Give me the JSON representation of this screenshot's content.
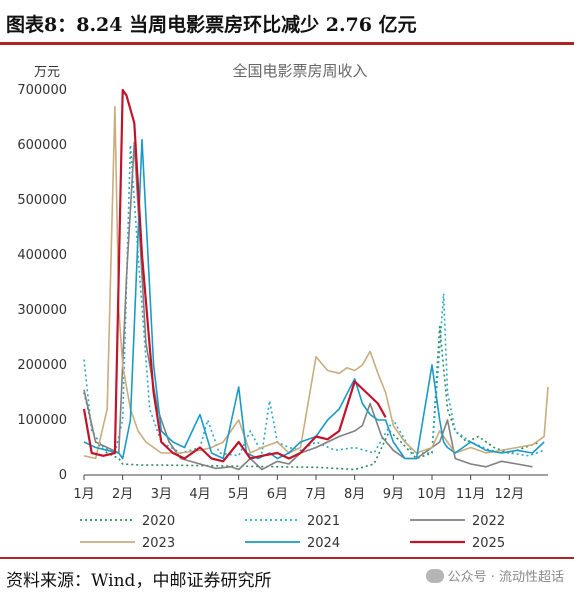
{
  "header": {
    "title": "图表8：8.24 当周电影票房环比减少 2.76 亿元"
  },
  "footer": {
    "source": "资料来源：Wind，中邮证券研究所",
    "watermark": "公众号 · 流动性超话"
  },
  "chart_data": {
    "type": "line",
    "title": "全国电影票房周收入",
    "ylabel": "万元",
    "ylim": [
      0,
      700000
    ],
    "yticks": [
      "0",
      "100000",
      "200000",
      "300000",
      "400000",
      "500000",
      "600000",
      "700000"
    ],
    "xlim": [
      1,
      13
    ],
    "categories": [
      "1月",
      "2月",
      "3月",
      "4月",
      "5月",
      "6月",
      "7月",
      "8月",
      "9月",
      "10月",
      "11月",
      "12月"
    ],
    "legend": "bottom",
    "series": [
      {
        "name": "2020",
        "color": "#2e8b57",
        "dash": "2,3",
        "x": [
          1.0,
          1.3,
          1.6,
          1.9,
          2.0,
          2.5,
          3.0,
          4.0,
          5.0,
          6.0,
          7.0,
          7.5,
          8.0,
          8.5,
          8.9,
          9.2,
          9.6,
          10.0,
          10.2,
          10.4,
          10.6,
          10.9,
          11.2,
          11.6,
          12.0,
          12.4,
          12.8
        ],
        "values": [
          150000,
          60000,
          40000,
          30000,
          20000,
          18000,
          18000,
          17000,
          16000,
          15000,
          14000,
          12000,
          10000,
          20000,
          80000,
          60000,
          30000,
          40000,
          270000,
          120000,
          80000,
          60000,
          70000,
          50000,
          40000,
          50000,
          60000
        ]
      },
      {
        "name": "2021",
        "color": "#2aa7c9",
        "dash": "2,3",
        "x": [
          1.0,
          1.2,
          1.5,
          1.8,
          2.0,
          2.2,
          2.4,
          2.7,
          3.0,
          3.5,
          4.0,
          4.2,
          4.5,
          5.0,
          5.3,
          5.6,
          5.8,
          6.0,
          6.3,
          6.6,
          7.0,
          7.5,
          8.0,
          8.5,
          9.0,
          9.5,
          10.0,
          10.2,
          10.3,
          10.4,
          10.6,
          11.0,
          11.5,
          12.0,
          12.5,
          12.9
        ],
        "values": [
          210000,
          80000,
          50000,
          40000,
          100000,
          600000,
          400000,
          120000,
          60000,
          40000,
          50000,
          100000,
          40000,
          35000,
          80000,
          40000,
          135000,
          60000,
          50000,
          45000,
          60000,
          45000,
          50000,
          40000,
          100000,
          40000,
          40000,
          230000,
          330000,
          150000,
          80000,
          60000,
          45000,
          40000,
          35000,
          45000
        ]
      },
      {
        "name": "2022",
        "color": "#808080",
        "dash": "",
        "x": [
          1.0,
          1.3,
          1.6,
          1.9,
          2.1,
          2.3,
          2.6,
          2.9,
          3.2,
          3.5,
          4.0,
          4.4,
          4.8,
          5.0,
          5.3,
          5.6,
          6.0,
          6.3,
          6.6,
          7.0,
          7.3,
          7.6,
          8.0,
          8.2,
          8.4,
          8.7,
          9.0,
          9.3,
          9.6,
          10.0,
          10.2,
          10.4,
          10.6,
          11.0,
          11.4,
          11.8,
          12.2,
          12.6
        ],
        "values": [
          155000,
          60000,
          50000,
          40000,
          360000,
          605000,
          240000,
          120000,
          60000,
          30000,
          20000,
          12000,
          15000,
          10000,
          30000,
          10000,
          25000,
          20000,
          40000,
          50000,
          60000,
          70000,
          80000,
          90000,
          130000,
          70000,
          45000,
          30000,
          30000,
          50000,
          60000,
          100000,
          30000,
          20000,
          15000,
          25000,
          20000,
          15000
        ]
      },
      {
        "name": "2023",
        "color": "#c9ad7f",
        "dash": "",
        "x": [
          1.0,
          1.3,
          1.6,
          1.8,
          1.9,
          2.0,
          2.2,
          2.4,
          2.6,
          3.0,
          3.5,
          4.0,
          4.3,
          4.6,
          5.0,
          5.3,
          5.6,
          6.0,
          6.3,
          6.6,
          7.0,
          7.3,
          7.6,
          7.8,
          8.0,
          8.2,
          8.4,
          8.6,
          8.8,
          9.0,
          9.3,
          9.6,
          10.0,
          10.2,
          10.4,
          10.6,
          11.0,
          11.4,
          11.8,
          12.2,
          12.6,
          12.9,
          13.0
        ],
        "values": [
          35000,
          30000,
          120000,
          670000,
          300000,
          200000,
          120000,
          80000,
          60000,
          40000,
          40000,
          45000,
          50000,
          60000,
          100000,
          40000,
          50000,
          60000,
          40000,
          50000,
          215000,
          190000,
          185000,
          195000,
          190000,
          200000,
          225000,
          185000,
          150000,
          90000,
          60000,
          40000,
          50000,
          80000,
          60000,
          40000,
          50000,
          40000,
          45000,
          50000,
          55000,
          70000,
          160000
        ]
      },
      {
        "name": "2024",
        "color": "#1a9bc7",
        "dash": "",
        "x": [
          1.0,
          1.3,
          1.6,
          1.9,
          2.0,
          2.2,
          2.5,
          2.8,
          3.0,
          3.3,
          3.6,
          4.0,
          4.3,
          4.6,
          5.0,
          5.2,
          5.5,
          5.8,
          6.0,
          6.3,
          6.6,
          7.0,
          7.3,
          7.6,
          8.0,
          8.2,
          8.4,
          8.6,
          8.8,
          9.0,
          9.3,
          9.6,
          10.0,
          10.2,
          10.3,
          10.4,
          10.6,
          11.0,
          11.4,
          11.8,
          12.2,
          12.6,
          12.9
        ],
        "values": [
          60000,
          50000,
          45000,
          40000,
          30000,
          100000,
          610000,
          200000,
          80000,
          60000,
          50000,
          110000,
          40000,
          30000,
          160000,
          40000,
          30000,
          40000,
          30000,
          40000,
          60000,
          70000,
          100000,
          120000,
          175000,
          130000,
          110000,
          100000,
          100000,
          60000,
          30000,
          30000,
          200000,
          100000,
          60000,
          50000,
          40000,
          60000,
          45000,
          40000,
          45000,
          40000,
          60000
        ]
      },
      {
        "name": "2025",
        "color": "#c0142b",
        "dash": "",
        "x": [
          1.0,
          1.2,
          1.5,
          1.8,
          2.0,
          2.1,
          2.3,
          2.5,
          2.8,
          3.0,
          3.3,
          3.6,
          4.0,
          4.3,
          4.6,
          5.0,
          5.3,
          5.6,
          6.0,
          6.3,
          6.6,
          7.0,
          7.3,
          7.6,
          8.0,
          8.3,
          8.6,
          8.8
        ],
        "values": [
          120000,
          40000,
          35000,
          40000,
          700000,
          690000,
          640000,
          400000,
          150000,
          60000,
          40000,
          30000,
          50000,
          30000,
          25000,
          60000,
          30000,
          35000,
          40000,
          30000,
          40000,
          70000,
          65000,
          80000,
          170000,
          150000,
          130000,
          105000
        ]
      }
    ]
  }
}
